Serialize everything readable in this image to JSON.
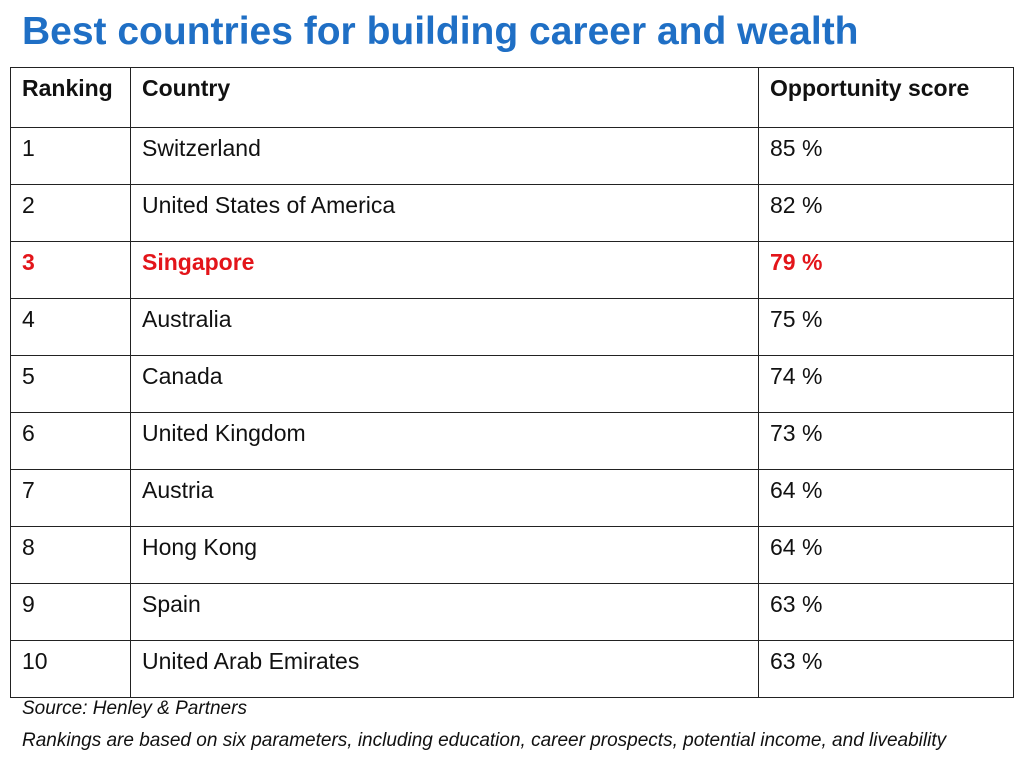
{
  "page": {
    "title": "Best countries for building career and wealth",
    "source": "Source: Henley & Partners",
    "note": "Rankings are based on six parameters, including education, career prospects, potential income, and liveability"
  },
  "colors": {
    "title": "#1F6FC5",
    "highlight": "#E3151A",
    "text": "#111111",
    "border": "#222222"
  },
  "table": {
    "headers": [
      "Ranking",
      "Country",
      "Opportunity score"
    ],
    "highlight_row_index": 2,
    "rows": [
      [
        "1",
        "Switzerland",
        "85 %"
      ],
      [
        "2",
        "United States of America",
        "82 %"
      ],
      [
        "3",
        "Singapore",
        "79 %"
      ],
      [
        "4",
        "Australia",
        "75 %"
      ],
      [
        "5",
        "Canada",
        "74 %"
      ],
      [
        "6",
        "United Kingdom",
        "73 %"
      ],
      [
        "7",
        "Austria",
        "64 %"
      ],
      [
        "8",
        "Hong Kong",
        "64 %"
      ],
      [
        "9",
        "Spain",
        "63 %"
      ],
      [
        "10",
        "United Arab Emirates",
        "63 %"
      ]
    ]
  },
  "chart_data": {
    "type": "table",
    "title": "Best countries for building career and wealth",
    "columns": [
      "Ranking",
      "Country",
      "Opportunity score"
    ],
    "rows": [
      [
        1,
        "Switzerland",
        85
      ],
      [
        2,
        "United States of America",
        82
      ],
      [
        3,
        "Singapore",
        79
      ],
      [
        4,
        "Australia",
        75
      ],
      [
        5,
        "Canada",
        74
      ],
      [
        6,
        "United Kingdom",
        73
      ],
      [
        7,
        "Austria",
        64
      ],
      [
        8,
        "Hong Kong",
        64
      ],
      [
        9,
        "Spain",
        63
      ],
      [
        10,
        "United Arab Emirates",
        63
      ]
    ],
    "units": {
      "Opportunity score": "%"
    },
    "highlighted_row": "Singapore"
  }
}
